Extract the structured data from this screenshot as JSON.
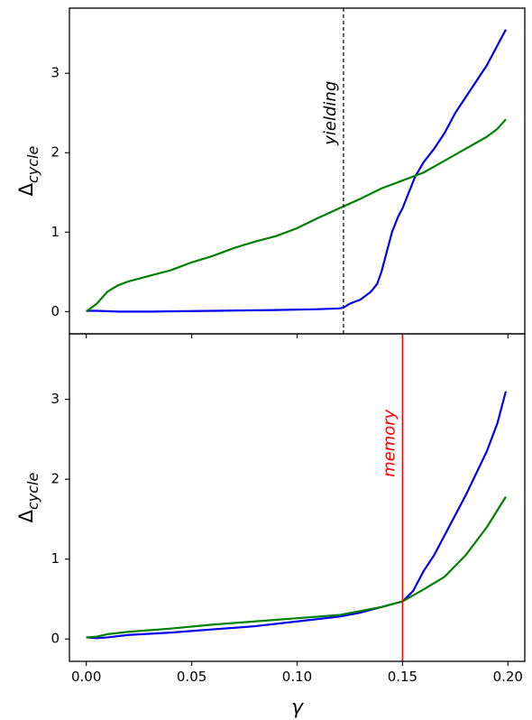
{
  "chart_data": [
    {
      "type": "line",
      "panel": "top",
      "ylabel_main": "Δ",
      "ylabel_sub": "cycle",
      "xlim": [
        -0.008,
        0.208
      ],
      "ylim": [
        -0.28,
        3.82
      ],
      "yticks": [
        0,
        1,
        2,
        3
      ],
      "show_x_tick_labels": false,
      "grid": false,
      "series": [
        {
          "color": "#0000ee",
          "x": [
            0.0,
            0.005,
            0.015,
            0.03,
            0.06,
            0.09,
            0.11,
            0.12,
            0.122,
            0.125,
            0.13,
            0.135,
            0.138,
            0.14,
            0.143,
            0.145,
            0.148,
            0.15,
            0.153,
            0.156,
            0.16,
            0.165,
            0.17,
            0.175,
            0.18,
            0.185,
            0.19,
            0.195,
            0.199
          ],
          "y": [
            0.01,
            0.01,
            0.0,
            0.0,
            0.01,
            0.02,
            0.03,
            0.04,
            0.05,
            0.1,
            0.15,
            0.25,
            0.35,
            0.5,
            0.8,
            1.0,
            1.2,
            1.3,
            1.5,
            1.7,
            1.88,
            2.05,
            2.25,
            2.5,
            2.7,
            2.9,
            3.1,
            3.35,
            3.55
          ]
        },
        {
          "color": "#008000",
          "x": [
            0.0,
            0.005,
            0.01,
            0.015,
            0.02,
            0.03,
            0.04,
            0.05,
            0.06,
            0.07,
            0.08,
            0.09,
            0.1,
            0.11,
            0.12,
            0.13,
            0.14,
            0.15,
            0.16,
            0.17,
            0.18,
            0.19,
            0.195,
            0.199
          ],
          "y": [
            0.0,
            0.1,
            0.25,
            0.33,
            0.38,
            0.45,
            0.52,
            0.62,
            0.7,
            0.8,
            0.88,
            0.95,
            1.05,
            1.18,
            1.3,
            1.42,
            1.55,
            1.65,
            1.75,
            1.9,
            2.05,
            2.2,
            2.3,
            2.42
          ]
        }
      ],
      "vline": {
        "x": 0.122,
        "color": "#000000",
        "style": "dashed"
      },
      "annotation": {
        "text": "yielding",
        "x": 0.116,
        "y": 2.5,
        "color": "#000000"
      }
    },
    {
      "type": "line",
      "panel": "bottom",
      "xlabel": "γ",
      "ylabel_main": "Δ",
      "ylabel_sub": "cycle",
      "xlim": [
        -0.008,
        0.208
      ],
      "ylim": [
        -0.28,
        3.82
      ],
      "yticks": [
        0,
        1,
        2,
        3
      ],
      "xticks": [
        0.0,
        0.05,
        0.1,
        0.15,
        0.2
      ],
      "xtick_labels": [
        "0.00",
        "0.05",
        "0.10",
        "0.15",
        "0.20"
      ],
      "grid": false,
      "series": [
        {
          "color": "#0000ee",
          "x": [
            0.0,
            0.005,
            0.01,
            0.02,
            0.04,
            0.06,
            0.08,
            0.1,
            0.12,
            0.13,
            0.14,
            0.15,
            0.155,
            0.16,
            0.165,
            0.17,
            0.18,
            0.19,
            0.195,
            0.199
          ],
          "y": [
            0.02,
            0.01,
            0.02,
            0.05,
            0.08,
            0.12,
            0.16,
            0.22,
            0.28,
            0.33,
            0.4,
            0.47,
            0.6,
            0.85,
            1.05,
            1.3,
            1.8,
            2.35,
            2.7,
            3.1
          ]
        },
        {
          "color": "#008000",
          "x": [
            0.0,
            0.005,
            0.01,
            0.02,
            0.04,
            0.06,
            0.08,
            0.1,
            0.12,
            0.14,
            0.15,
            0.16,
            0.17,
            0.18,
            0.19,
            0.199
          ],
          "y": [
            0.02,
            0.03,
            0.06,
            0.09,
            0.13,
            0.18,
            0.22,
            0.26,
            0.3,
            0.4,
            0.47,
            0.62,
            0.78,
            1.05,
            1.4,
            1.78
          ]
        }
      ],
      "vline": {
        "x": 0.15,
        "color": "#ff0000",
        "style": "solid"
      },
      "annotation": {
        "text": "memory",
        "x": 0.144,
        "y": 2.45,
        "color": "#ff0000"
      }
    }
  ]
}
